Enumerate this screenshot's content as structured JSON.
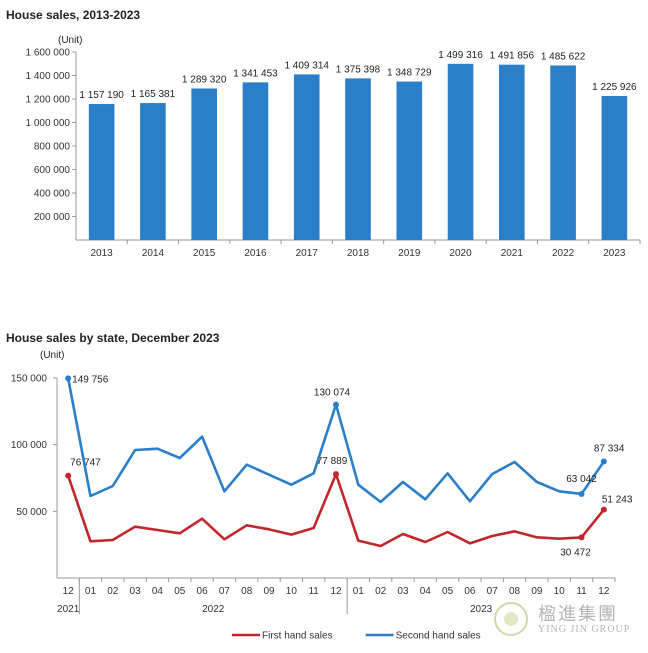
{
  "chart_data": [
    {
      "type": "bar",
      "title": "House sales, 2013-2023",
      "unit_label": "(Unit)",
      "categories": [
        "2013",
        "2014",
        "2015",
        "2016",
        "2017",
        "2018",
        "2019",
        "2020",
        "2021",
        "2022",
        "2023"
      ],
      "values": [
        1157190,
        1165381,
        1289320,
        1341453,
        1409314,
        1375398,
        1348729,
        1499316,
        1491856,
        1485622,
        1225926
      ],
      "value_labels": [
        "1 157 190",
        "1 165 381",
        "1 289 320",
        "1 341 453",
        "1 409 314",
        "1 375 398",
        "1 348 729",
        "1 499 316",
        "1 491 856",
        "1 485 622",
        "1 225 926"
      ],
      "ylim": [
        0,
        1600000
      ],
      "yticks": [
        200000,
        400000,
        600000,
        800000,
        1000000,
        1200000,
        1400000,
        1600000
      ],
      "ytick_labels": [
        "200 000",
        "400 000",
        "600 000",
        "800 000",
        "1 000 000",
        "1 200 000",
        "1 400 000",
        "1 600 000"
      ],
      "bar_color": "#2b7fc9",
      "grid": false
    },
    {
      "type": "line",
      "title": "House sales by state, December 2023",
      "unit_label": "(Unit)",
      "categories": [
        "12",
        "01",
        "02",
        "03",
        "04",
        "05",
        "06",
        "07",
        "08",
        "09",
        "10",
        "11",
        "12",
        "01",
        "02",
        "03",
        "04",
        "05",
        "06",
        "07",
        "08",
        "09",
        "10",
        "11",
        "12"
      ],
      "year_labels": [
        "2021",
        "2022",
        "2023"
      ],
      "ylim": [
        0,
        150000
      ],
      "yticks": [
        50000,
        100000,
        150000
      ],
      "ytick_labels": [
        "50 000",
        "100 000",
        "150 000"
      ],
      "series": [
        {
          "name": "First hand sales",
          "color": "#c0272d",
          "values": [
            76747,
            27500,
            28500,
            38500,
            36000,
            33500,
            44500,
            29000,
            39500,
            36500,
            32500,
            37500,
            77889,
            28000,
            24000,
            33000,
            27000,
            34500,
            26000,
            31500,
            35000,
            30500,
            29500,
            30472,
            51243
          ],
          "labels": {
            "0": "76 747",
            "12": "77 889",
            "23": "30 472",
            "24": "51 243"
          }
        },
        {
          "name": "Second hand sales",
          "color": "#2b7fc9",
          "values": [
            149756,
            61500,
            69000,
            96000,
            97000,
            90000,
            106000,
            65000,
            85000,
            77500,
            70000,
            78500,
            130074,
            70000,
            57000,
            72000,
            59000,
            78500,
            57500,
            78000,
            87000,
            72000,
            65000,
            63042,
            87334
          ],
          "labels": {
            "0": "149 756",
            "12": "130 074",
            "23": "63 042",
            "24": "87 334"
          }
        }
      ],
      "legend_placement": "bottom",
      "grid": false
    }
  ],
  "logo": {
    "text": "楹進集團",
    "subtext": "YING JIN GROUP"
  }
}
